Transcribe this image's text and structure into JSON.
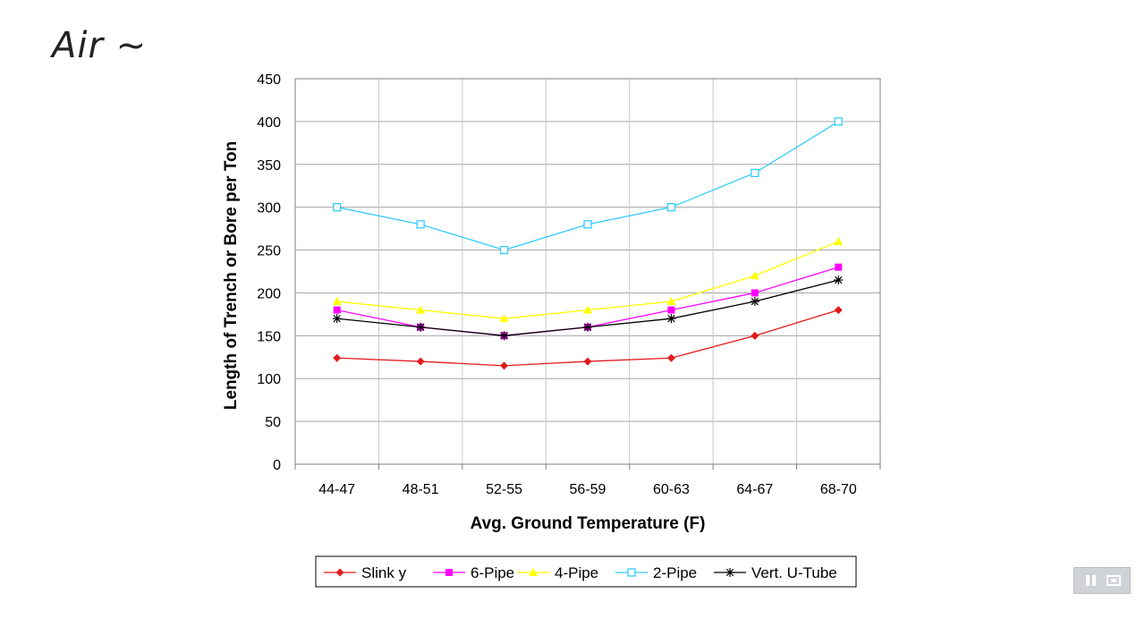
{
  "annotation": {
    "text": "Air ~"
  },
  "chart_data": {
    "type": "line",
    "title": "",
    "xlabel": "Avg. Ground Temperature (F)",
    "ylabel": "Length of Trench or Bore per Ton",
    "categories": [
      "44-47",
      "48-51",
      "52-55",
      "56-59",
      "60-63",
      "64-67",
      "68-70"
    ],
    "ylim": [
      0,
      450
    ],
    "yticks": [
      0,
      50,
      100,
      150,
      200,
      250,
      300,
      350,
      400,
      450
    ],
    "grid": true,
    "legend_position": "bottom",
    "series": [
      {
        "name": "Slink y",
        "color": "#e31a1c",
        "marker": "diamond",
        "values": [
          124,
          120,
          115,
          120,
          124,
          150,
          180
        ]
      },
      {
        "name": "6-Pipe",
        "color": "#ff00ff",
        "marker": "square",
        "values": [
          180,
          160,
          150,
          160,
          180,
          200,
          230
        ]
      },
      {
        "name": "4-Pipe",
        "color": "#ffff00",
        "marker": "triangle",
        "values": [
          190,
          180,
          170,
          180,
          190,
          220,
          260
        ]
      },
      {
        "name": "2-Pipe",
        "color": "#33ccff",
        "marker": "open-square",
        "values": [
          300,
          280,
          250,
          280,
          300,
          340,
          400
        ]
      },
      {
        "name": "Vert. U-Tube",
        "color": "#000000",
        "marker": "star",
        "values": [
          170,
          160,
          150,
          160,
          170,
          190,
          215
        ]
      }
    ]
  },
  "player": {
    "pause_icon": "pause-icon",
    "screen_icon": "screen-icon"
  }
}
